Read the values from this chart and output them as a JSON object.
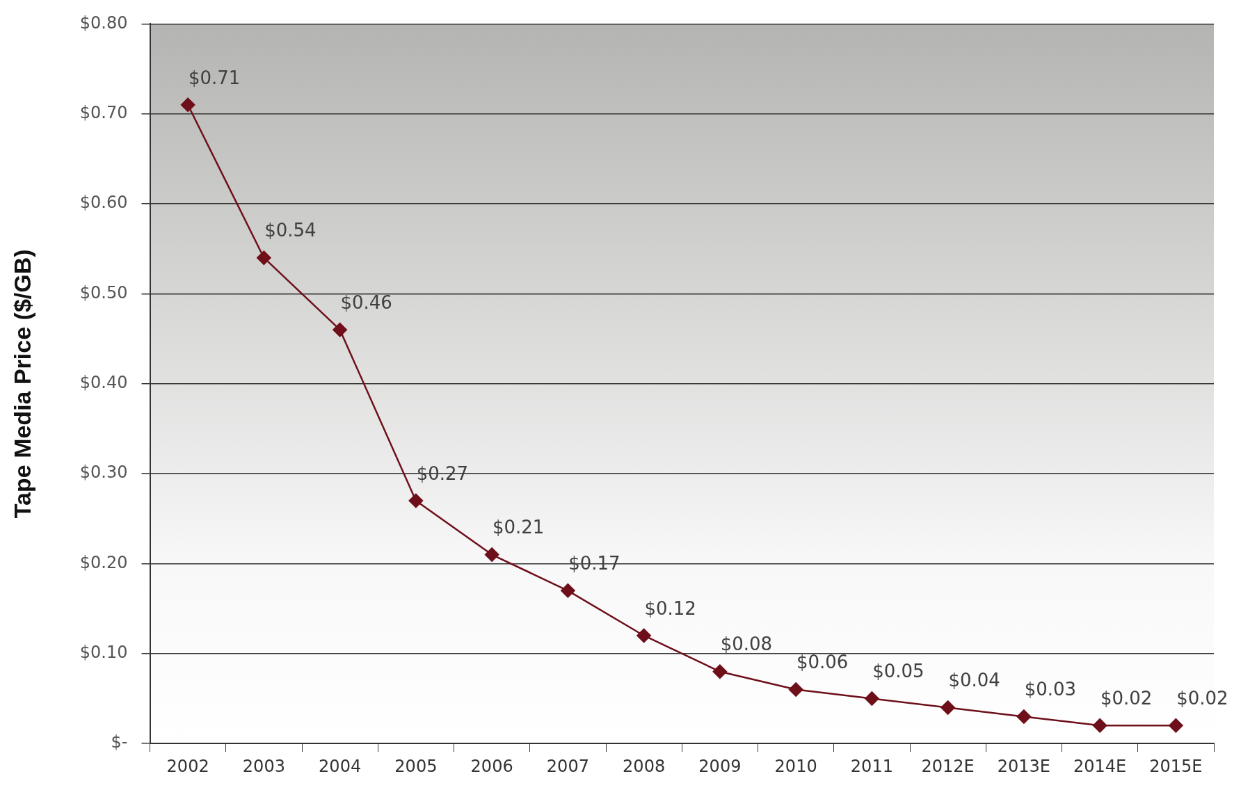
{
  "chart_data": {
    "type": "line",
    "ylabel": "Tape Media Price ($/GB)",
    "categories": [
      "2002",
      "2003",
      "2004",
      "2005",
      "2006",
      "2007",
      "2008",
      "2009",
      "2010",
      "2011",
      "2012E",
      "2013E",
      "2014E",
      "2015E"
    ],
    "series": [
      {
        "color": "#6e0f1a",
        "values": [
          0.71,
          0.54,
          0.46,
          0.27,
          0.21,
          0.17,
          0.12,
          0.08,
          0.06,
          0.05,
          0.04,
          0.03,
          0.02,
          0.02
        ],
        "value_labels": [
          "$0.71",
          "$0.54",
          "$0.46",
          "$0.27",
          "$0.21",
          "$0.17",
          "$0.12",
          "$0.08",
          "$0.06",
          "$0.05",
          "$0.04",
          "$0.03",
          "$0.02",
          "$0.02"
        ]
      }
    ],
    "ylim": [
      0,
      0.8
    ],
    "yticks": [
      {
        "value": 0,
        "label": "$-"
      },
      {
        "value": 0.1,
        "label": "$0.10"
      },
      {
        "value": 0.2,
        "label": "$0.20"
      },
      {
        "value": 0.3,
        "label": "$0.30"
      },
      {
        "value": 0.4,
        "label": "$0.40"
      },
      {
        "value": 0.5,
        "label": "$0.50"
      },
      {
        "value": 0.6,
        "label": "$0.60"
      },
      {
        "value": 0.7,
        "label": "$0.70"
      },
      {
        "value": 0.8,
        "label": "$0.80"
      }
    ],
    "grid": "y",
    "legend": false,
    "marker": "diamond",
    "line_style": "solid"
  }
}
